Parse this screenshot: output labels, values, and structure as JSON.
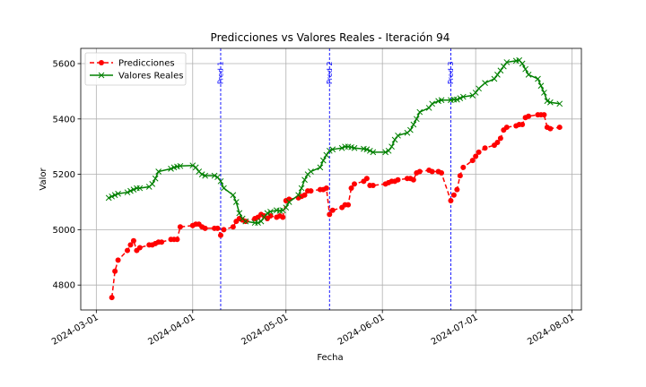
{
  "chart_data": {
    "type": "line",
    "title": "Predicciones vs Valores Reales - Iteración 94",
    "xlabel": "Fecha",
    "ylabel": "Valor",
    "xlim": [
      "2024-02-25",
      "2024-08-04"
    ],
    "ylim": [
      4710,
      5655
    ],
    "grid": true,
    "legend_position": "top-left",
    "x_ticks": [
      "2024-03-01",
      "2024-04-01",
      "2024-05-01",
      "2024-06-01",
      "2024-07-01",
      "2024-08-01"
    ],
    "y_ticks": [
      4800,
      5000,
      5200,
      5400,
      5600
    ],
    "vertical_lines": [
      {
        "date": "2024-04-10",
        "label": "Pred 1",
        "color": "#0000ff"
      },
      {
        "date": "2024-05-15",
        "label": "Pred 2",
        "color": "#0000ff"
      },
      {
        "date": "2024-06-23",
        "label": "Pred 3",
        "color": "#0000ff"
      }
    ],
    "series": [
      {
        "name": "Predicciones",
        "color": "#ff0000",
        "marker": "circle",
        "dash": "dashed",
        "points": [
          [
            "2024-03-06",
            4755
          ],
          [
            "2024-03-07",
            4850
          ],
          [
            "2024-03-08",
            4890
          ],
          [
            "2024-03-11",
            4925
          ],
          [
            "2024-03-12",
            4945
          ],
          [
            "2024-03-13",
            4960
          ],
          [
            "2024-03-14",
            4925
          ],
          [
            "2024-03-15",
            4935
          ],
          [
            "2024-03-18",
            4945
          ],
          [
            "2024-03-19",
            4945
          ],
          [
            "2024-03-20",
            4950
          ],
          [
            "2024-03-21",
            4955
          ],
          [
            "2024-03-22",
            4955
          ],
          [
            "2024-03-25",
            4965
          ],
          [
            "2024-03-26",
            4965
          ],
          [
            "2024-03-27",
            4965
          ],
          [
            "2024-03-28",
            5010
          ],
          [
            "2024-04-01",
            5015
          ],
          [
            "2024-04-02",
            5020
          ],
          [
            "2024-04-03",
            5020
          ],
          [
            "2024-04-04",
            5010
          ],
          [
            "2024-04-05",
            5005
          ],
          [
            "2024-04-08",
            5005
          ],
          [
            "2024-04-09",
            5005
          ],
          [
            "2024-04-10",
            4980
          ],
          [
            "2024-04-11",
            5000
          ],
          [
            "2024-04-14",
            5010
          ],
          [
            "2024-04-15",
            5030
          ],
          [
            "2024-04-16",
            5040
          ],
          [
            "2024-04-17",
            5035
          ],
          [
            "2024-04-18",
            5030
          ],
          [
            "2024-04-21",
            5040
          ],
          [
            "2024-04-22",
            5045
          ],
          [
            "2024-04-23",
            5055
          ],
          [
            "2024-04-24",
            5050
          ],
          [
            "2024-04-25",
            5040
          ],
          [
            "2024-04-26",
            5050
          ],
          [
            "2024-04-28",
            5045
          ],
          [
            "2024-04-29",
            5050
          ],
          [
            "2024-04-30",
            5045
          ],
          [
            "2024-05-01",
            5105
          ],
          [
            "2024-05-02",
            5110
          ],
          [
            "2024-05-05",
            5115
          ],
          [
            "2024-05-06",
            5120
          ],
          [
            "2024-05-07",
            5125
          ],
          [
            "2024-05-08",
            5140
          ],
          [
            "2024-05-09",
            5140
          ],
          [
            "2024-05-12",
            5145
          ],
          [
            "2024-05-13",
            5145
          ],
          [
            "2024-05-14",
            5150
          ],
          [
            "2024-05-15",
            5055
          ],
          [
            "2024-05-16",
            5070
          ],
          [
            "2024-05-19",
            5080
          ],
          [
            "2024-05-20",
            5090
          ],
          [
            "2024-05-21",
            5090
          ],
          [
            "2024-05-22",
            5150
          ],
          [
            "2024-05-23",
            5165
          ],
          [
            "2024-05-26",
            5175
          ],
          [
            "2024-05-27",
            5185
          ],
          [
            "2024-05-28",
            5160
          ],
          [
            "2024-05-29",
            5160
          ],
          [
            "2024-06-02",
            5165
          ],
          [
            "2024-06-03",
            5170
          ],
          [
            "2024-06-04",
            5175
          ],
          [
            "2024-06-05",
            5175
          ],
          [
            "2024-06-06",
            5180
          ],
          [
            "2024-06-09",
            5185
          ],
          [
            "2024-06-10",
            5185
          ],
          [
            "2024-06-11",
            5180
          ],
          [
            "2024-06-12",
            5205
          ],
          [
            "2024-06-13",
            5210
          ],
          [
            "2024-06-16",
            5215
          ],
          [
            "2024-06-17",
            5210
          ],
          [
            "2024-06-19",
            5210
          ],
          [
            "2024-06-20",
            5205
          ],
          [
            "2024-06-23",
            5105
          ],
          [
            "2024-06-24",
            5125
          ],
          [
            "2024-06-25",
            5145
          ],
          [
            "2024-06-26",
            5195
          ],
          [
            "2024-06-27",
            5225
          ],
          [
            "2024-06-30",
            5250
          ],
          [
            "2024-07-01",
            5265
          ],
          [
            "2024-07-02",
            5280
          ],
          [
            "2024-07-04",
            5295
          ],
          [
            "2024-07-07",
            5305
          ],
          [
            "2024-07-08",
            5315
          ],
          [
            "2024-07-09",
            5330
          ],
          [
            "2024-07-10",
            5360
          ],
          [
            "2024-07-11",
            5370
          ],
          [
            "2024-07-14",
            5375
          ],
          [
            "2024-07-15",
            5380
          ],
          [
            "2024-07-16",
            5380
          ],
          [
            "2024-07-17",
            5405
          ],
          [
            "2024-07-18",
            5410
          ],
          [
            "2024-07-21",
            5415
          ],
          [
            "2024-07-22",
            5415
          ],
          [
            "2024-07-23",
            5415
          ],
          [
            "2024-07-24",
            5370
          ],
          [
            "2024-07-25",
            5365
          ],
          [
            "2024-07-28",
            5370
          ]
        ]
      },
      {
        "name": "Valores Reales",
        "color": "#008000",
        "marker": "x",
        "dash": "solid",
        "points": [
          [
            "2024-03-05",
            5115
          ],
          [
            "2024-03-06",
            5120
          ],
          [
            "2024-03-07",
            5125
          ],
          [
            "2024-03-08",
            5130
          ],
          [
            "2024-03-11",
            5135
          ],
          [
            "2024-03-12",
            5140
          ],
          [
            "2024-03-13",
            5145
          ],
          [
            "2024-03-14",
            5150
          ],
          [
            "2024-03-15",
            5150
          ],
          [
            "2024-03-18",
            5155
          ],
          [
            "2024-03-19",
            5165
          ],
          [
            "2024-03-20",
            5185
          ],
          [
            "2024-03-21",
            5210
          ],
          [
            "2024-03-25",
            5220
          ],
          [
            "2024-03-26",
            5225
          ],
          [
            "2024-03-27",
            5228
          ],
          [
            "2024-03-28",
            5230
          ],
          [
            "2024-04-01",
            5232
          ],
          [
            "2024-04-02",
            5225
          ],
          [
            "2024-04-03",
            5210
          ],
          [
            "2024-04-04",
            5200
          ],
          [
            "2024-04-05",
            5195
          ],
          [
            "2024-04-08",
            5195
          ],
          [
            "2024-04-09",
            5190
          ],
          [
            "2024-04-10",
            5175
          ],
          [
            "2024-04-11",
            5150
          ],
          [
            "2024-04-14",
            5125
          ],
          [
            "2024-04-15",
            5100
          ],
          [
            "2024-04-16",
            5060
          ],
          [
            "2024-04-17",
            5040
          ],
          [
            "2024-04-18",
            5030
          ],
          [
            "2024-04-21",
            5025
          ],
          [
            "2024-04-22",
            5025
          ],
          [
            "2024-04-23",
            5030
          ],
          [
            "2024-04-24",
            5045
          ],
          [
            "2024-04-25",
            5060
          ],
          [
            "2024-04-26",
            5065
          ],
          [
            "2024-04-28",
            5070
          ],
          [
            "2024-04-29",
            5068
          ],
          [
            "2024-04-30",
            5070
          ],
          [
            "2024-05-01",
            5080
          ],
          [
            "2024-05-02",
            5100
          ],
          [
            "2024-05-05",
            5125
          ],
          [
            "2024-05-06",
            5150
          ],
          [
            "2024-05-07",
            5180
          ],
          [
            "2024-05-08",
            5200
          ],
          [
            "2024-05-09",
            5210
          ],
          [
            "2024-05-12",
            5225
          ],
          [
            "2024-05-13",
            5250
          ],
          [
            "2024-05-14",
            5270
          ],
          [
            "2024-05-15",
            5285
          ],
          [
            "2024-05-16",
            5290
          ],
          [
            "2024-05-19",
            5295
          ],
          [
            "2024-05-20",
            5300
          ],
          [
            "2024-05-21",
            5300
          ],
          [
            "2024-05-22",
            5298
          ],
          [
            "2024-05-23",
            5295
          ],
          [
            "2024-05-26",
            5292
          ],
          [
            "2024-05-27",
            5290
          ],
          [
            "2024-05-28",
            5285
          ],
          [
            "2024-05-29",
            5280
          ],
          [
            "2024-06-02",
            5280
          ],
          [
            "2024-06-03",
            5285
          ],
          [
            "2024-06-04",
            5300
          ],
          [
            "2024-06-05",
            5325
          ],
          [
            "2024-06-06",
            5340
          ],
          [
            "2024-06-09",
            5350
          ],
          [
            "2024-06-10",
            5360
          ],
          [
            "2024-06-11",
            5380
          ],
          [
            "2024-06-12",
            5400
          ],
          [
            "2024-06-13",
            5425
          ],
          [
            "2024-06-16",
            5440
          ],
          [
            "2024-06-17",
            5455
          ],
          [
            "2024-06-19",
            5465
          ],
          [
            "2024-06-20",
            5468
          ],
          [
            "2024-06-23",
            5468
          ],
          [
            "2024-06-24",
            5470
          ],
          [
            "2024-06-25",
            5470
          ],
          [
            "2024-06-26",
            5475
          ],
          [
            "2024-06-27",
            5480
          ],
          [
            "2024-06-30",
            5485
          ],
          [
            "2024-07-01",
            5495
          ],
          [
            "2024-07-02",
            5510
          ],
          [
            "2024-07-04",
            5530
          ],
          [
            "2024-07-07",
            5545
          ],
          [
            "2024-07-08",
            5560
          ],
          [
            "2024-07-09",
            5575
          ],
          [
            "2024-07-10",
            5590
          ],
          [
            "2024-07-11",
            5605
          ],
          [
            "2024-07-14",
            5610
          ],
          [
            "2024-07-15",
            5612
          ],
          [
            "2024-07-16",
            5600
          ],
          [
            "2024-07-17",
            5580
          ],
          [
            "2024-07-18",
            5560
          ],
          [
            "2024-07-21",
            5545
          ],
          [
            "2024-07-22",
            5520
          ],
          [
            "2024-07-23",
            5495
          ],
          [
            "2024-07-24",
            5465
          ],
          [
            "2024-07-25",
            5460
          ],
          [
            "2024-07-28",
            5455
          ]
        ]
      }
    ]
  }
}
